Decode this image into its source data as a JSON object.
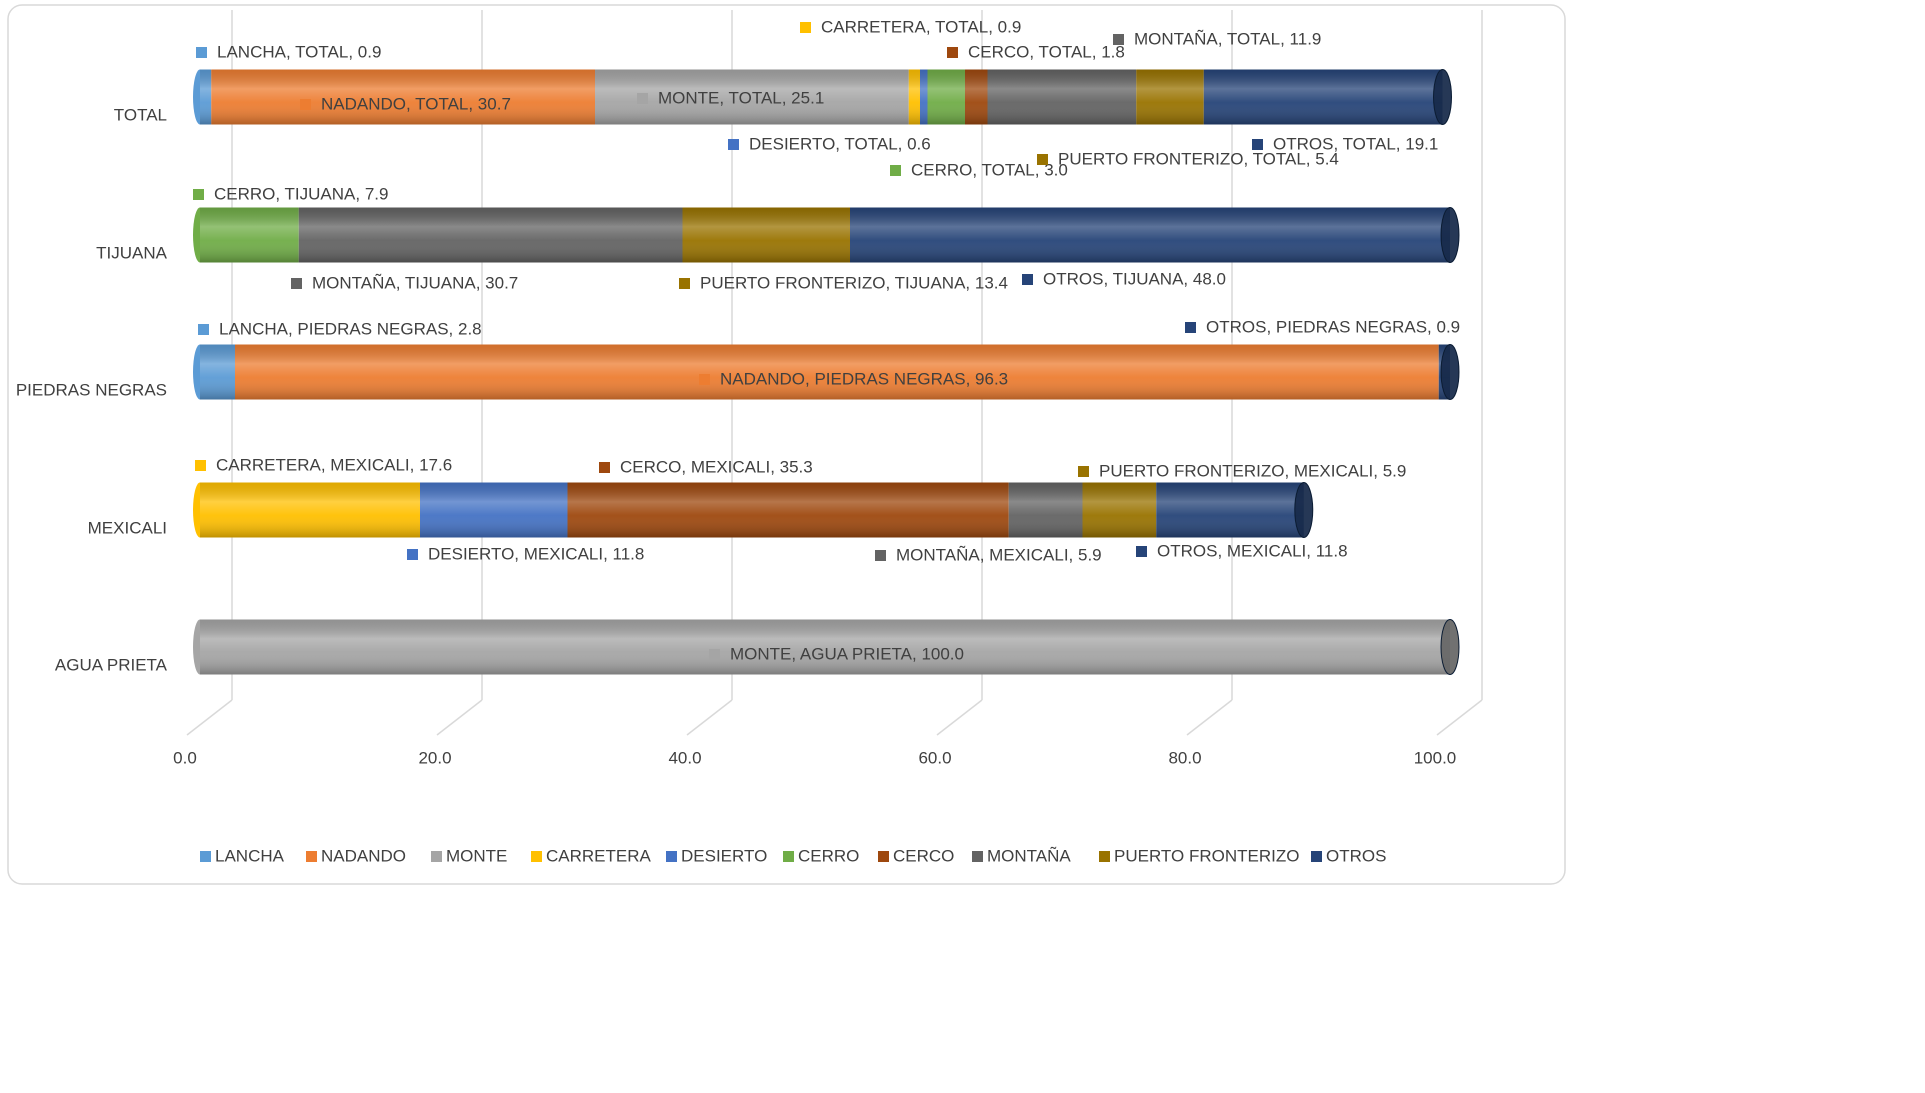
{
  "chart_data": {
    "type": "stacked-bar",
    "orientation": "horizontal",
    "categories": [
      "TOTAL",
      "TIJUANA",
      "PIEDRAS NEGRAS",
      "MEXICALI",
      "AGUA PRIETA"
    ],
    "series": [
      {
        "name": "LANCHA",
        "color": "#5b9bd5",
        "values": [
          0.9,
          null,
          2.8,
          null,
          null
        ],
        "value_labels": [
          "LANCHA, TOTAL, 0.9",
          null,
          "LANCHA, PIEDRAS NEGRAS, 2.8",
          null,
          null
        ]
      },
      {
        "name": "NADANDO",
        "color": "#ed7d31",
        "values": [
          30.7,
          null,
          96.3,
          null,
          null
        ],
        "value_labels": [
          "NADANDO, TOTAL, 30.7",
          null,
          "NADANDO, PIEDRAS NEGRAS, 96.3",
          null,
          null
        ]
      },
      {
        "name": "MONTE",
        "color": "#a5a5a5",
        "values": [
          25.1,
          null,
          null,
          null,
          100
        ],
        "value_labels": [
          "MONTE, TOTAL, 25.1",
          null,
          null,
          null,
          "MONTE, AGUA PRIETA, 100.0"
        ]
      },
      {
        "name": "CARRETERA",
        "color": "#ffc000",
        "values": [
          0.9,
          null,
          null,
          17.6,
          null
        ],
        "value_labels": [
          "CARRETERA, TOTAL, 0.9",
          null,
          null,
          "CARRETERA, MEXICALI, 17.6",
          null
        ]
      },
      {
        "name": "DESIERTO",
        "color": "#4472c4",
        "values": [
          0.6,
          null,
          null,
          11.8,
          null
        ],
        "value_labels": [
          "DESIERTO, TOTAL, 0.6",
          null,
          null,
          "DESIERTO, MEXICALI, 11.8",
          null
        ]
      },
      {
        "name": "CERRO",
        "color": "#70ad47",
        "values": [
          3.0,
          7.9,
          null,
          null,
          null
        ],
        "value_labels": [
          "CERRO, TOTAL, 3.0",
          "CERRO, TIJUANA, 7.9",
          null,
          null,
          null
        ]
      },
      {
        "name": "CERCO",
        "color": "#9e480e",
        "values": [
          1.8,
          null,
          null,
          35.3,
          null
        ],
        "value_labels": [
          "CERCO, TOTAL, 1.8",
          null,
          null,
          "CERCO, MEXICALI, 35.3",
          null
        ]
      },
      {
        "name": "MONTAÑA",
        "color": "#636363",
        "values": [
          11.9,
          30.7,
          null,
          5.9,
          null
        ],
        "value_labels": [
          "MONTAÑA, TOTAL, 11.9",
          "MONTAÑA, TIJUANA, 30.7",
          null,
          "MONTAÑA, MEXICALI, 5.9",
          null
        ]
      },
      {
        "name": "PUERTO FRONTERIZO",
        "color": "#997300",
        "values": [
          5.4,
          13.4,
          null,
          5.9,
          null
        ],
        "value_labels": [
          "PUERTO FRONTERIZO, TOTAL, 5.4",
          "PUERTO FRONTERIZO, TIJUANA, 13.4",
          null,
          "PUERTO FRONTERIZO, MEXICALI, 5.9",
          null
        ]
      },
      {
        "name": "OTROS",
        "color": "#264478",
        "values": [
          19.1,
          48.0,
          0.9,
          11.8,
          null
        ],
        "value_labels": [
          "OTROS, TOTAL, 19.1",
          "OTROS, TIJUANA, 48.0",
          "OTROS, PIEDRAS NEGRAS, 0.9",
          "OTROS, MEXICALI, 11.8",
          null
        ]
      }
    ],
    "xlim": [
      0,
      100
    ],
    "xticks": [
      {
        "value": 0,
        "label": "0.0"
      },
      {
        "value": 20,
        "label": "20.0"
      },
      {
        "value": 40,
        "label": "40.0"
      },
      {
        "value": 60,
        "label": "60.0"
      },
      {
        "value": 80,
        "label": "80.0"
      },
      {
        "value": 100,
        "label": "100.0"
      }
    ],
    "grid": true,
    "legend": "bottom"
  }
}
